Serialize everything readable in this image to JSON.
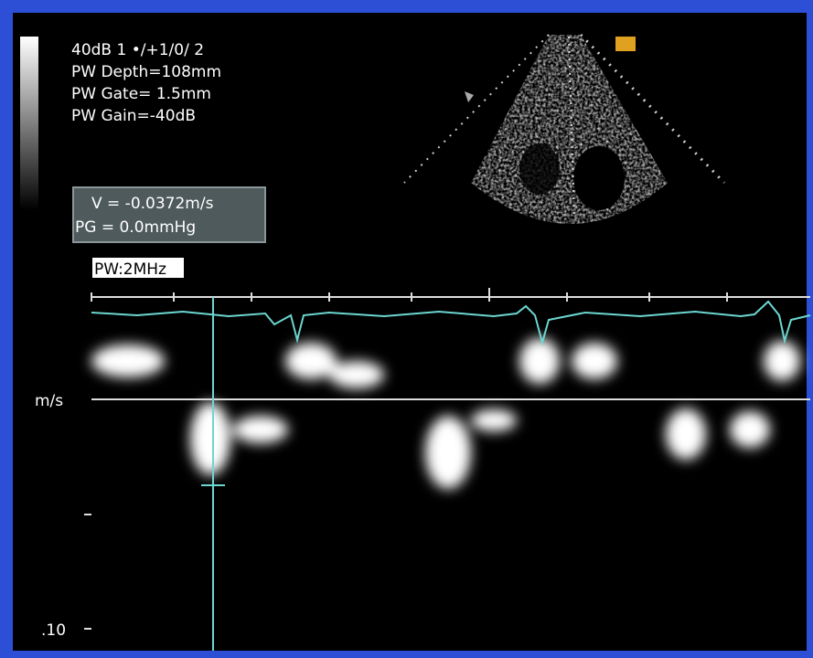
{
  "settings": {
    "line1": "40dB  1 •/+1/0/ 2",
    "depth": "PW Depth=108mm",
    "gate": "PW Gate=  1.5mm",
    "gain": "PW Gain=-40dB"
  },
  "measurement": {
    "velocity": "V = -0.0372m/s",
    "gradient": "PG = 0.0mmHg"
  },
  "mode": "PW:2MHz",
  "axis": {
    "unit": "m/s",
    "tick": ".10"
  }
}
